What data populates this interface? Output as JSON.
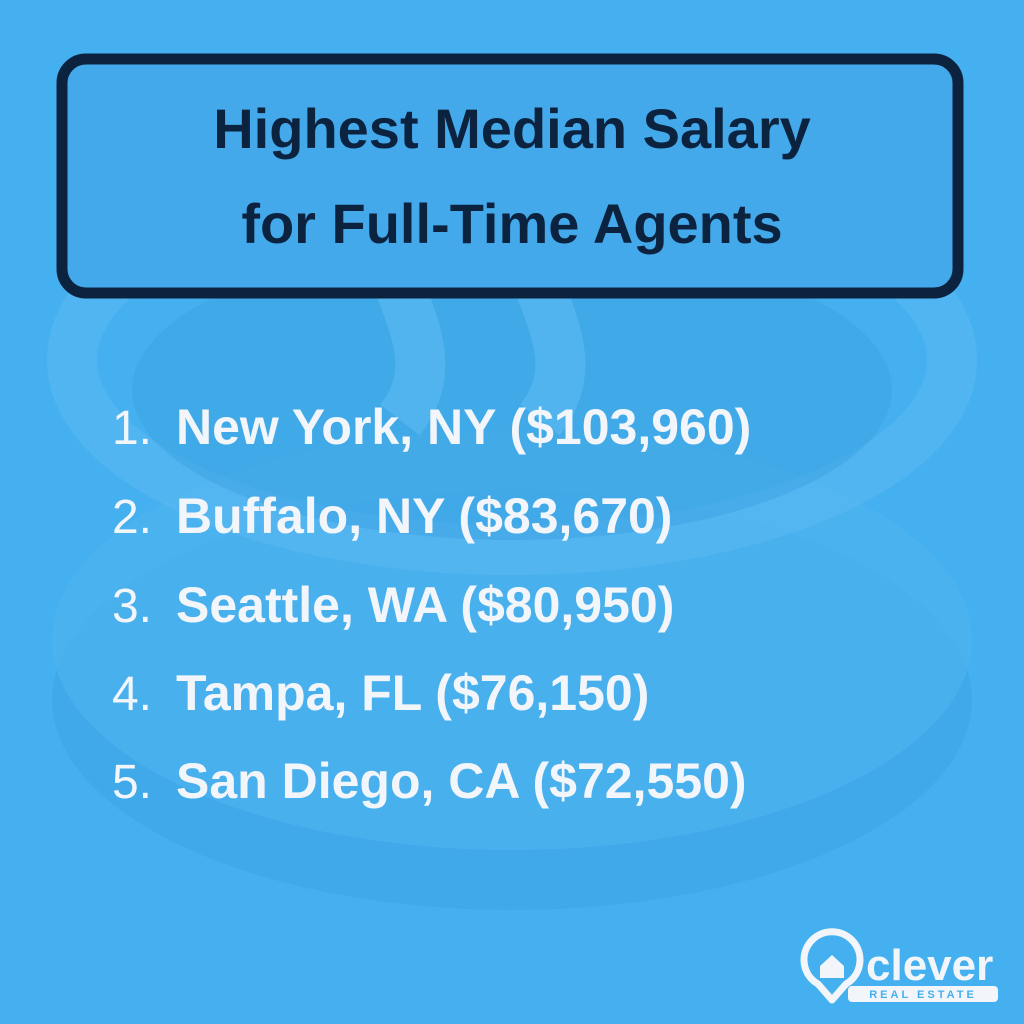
{
  "title": {
    "lines": [
      "Highest Median Salary",
      "for Full-Time Agents"
    ]
  },
  "list": [
    {
      "number": "1.",
      "text": "New York, NY ($103,960)"
    },
    {
      "number": "2.",
      "text": "Buffalo, NY ($83,670)"
    },
    {
      "number": "3.",
      "text": "Seattle, WA ($80,950)"
    },
    {
      "number": "4.",
      "text": "Tampa, FL ($76,150)"
    },
    {
      "number": "5.",
      "text": "San Diego, CA ($72,550)"
    }
  ],
  "logo": {
    "name": "clever",
    "tagline": "REAL ESTATE"
  }
}
